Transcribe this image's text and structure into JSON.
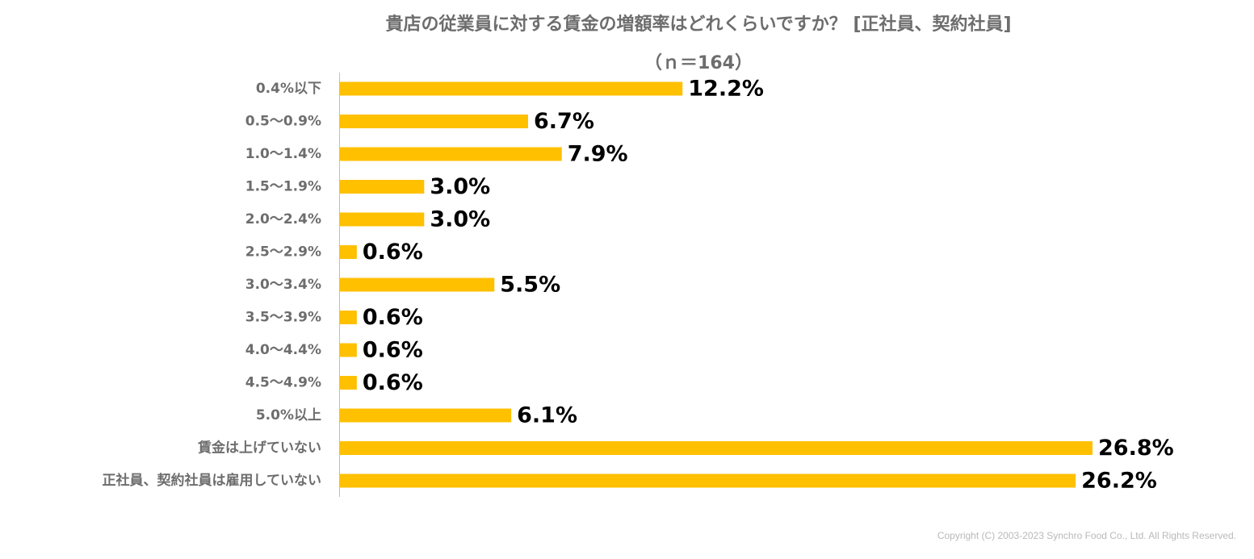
{
  "chart_data": {
    "type": "bar",
    "orientation": "horizontal",
    "title": "貴店の従業員に対する賃金の増額率はどれくらいですか？ [正社員、契約社員]",
    "subtitle": "（ｎ＝164）",
    "categories": [
      "0.4%以下",
      "0.5～0.9%",
      "1.0～1.4%",
      "1.5～1.9%",
      "2.0～2.4%",
      "2.5～2.9%",
      "3.0～3.4%",
      "3.5～3.9%",
      "4.0～4.4%",
      "4.5～4.9%",
      "5.0%以上",
      "賃金は上げていない",
      "正社員、契約社員は雇用していない"
    ],
    "values": [
      12.2,
      6.7,
      7.9,
      3.0,
      3.0,
      0.6,
      5.5,
      0.6,
      0.6,
      0.6,
      6.1,
      26.8,
      26.2
    ],
    "value_labels": [
      "12.2%",
      "6.7%",
      "7.9%",
      "3.0%",
      "3.0%",
      "0.6%",
      "5.5%",
      "0.6%",
      "0.6%",
      "0.6%",
      "6.1%",
      "26.8%",
      "26.2%"
    ],
    "unit": "%",
    "xlim": [
      0,
      26.8
    ],
    "grid": false,
    "bar_color": "#FFC000"
  },
  "footer": {
    "copyright": "Copyright (C) 2003-2023   Synchro Food Co., Ltd. All Rights Reserved."
  }
}
